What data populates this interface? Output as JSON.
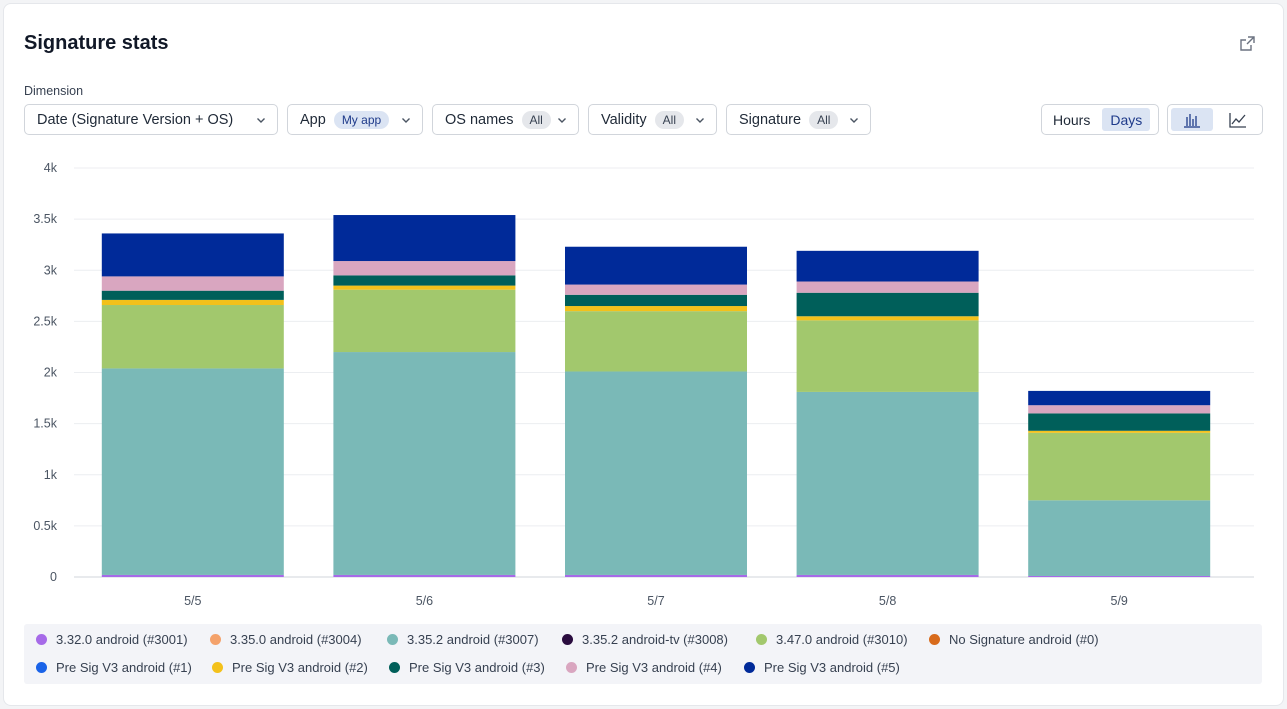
{
  "panel": {
    "title": "Signature stats",
    "dimension_label": "Dimension"
  },
  "filters": {
    "dimension": {
      "value": "Date (Signature Version + OS)"
    },
    "app": {
      "label": "App",
      "value": "My app"
    },
    "os_names": {
      "label": "OS names",
      "value": "All"
    },
    "validity": {
      "label": "Validity",
      "value": "All"
    },
    "signature": {
      "label": "Signature",
      "value": "All"
    }
  },
  "granularity": {
    "options": [
      "Hours",
      "Days"
    ],
    "selected": "Days"
  },
  "chart_view": {
    "selected": "bar-chart"
  },
  "icons": [
    "export-icon",
    "chevron-down-icon",
    "bar-chart-icon",
    "line-chart-icon"
  ],
  "chart_data": {
    "type": "bar",
    "stacked": true,
    "categories": [
      "5/5",
      "5/6",
      "5/7",
      "5/8",
      "5/9"
    ],
    "y_ticks": [
      "0",
      "0.5k",
      "1k",
      "1.5k",
      "2k",
      "2.5k",
      "3k",
      "3.5k",
      "4k"
    ],
    "ylim": [
      0,
      4000
    ],
    "grid": true,
    "legend_position": "bottom",
    "series": [
      {
        "name": "3.32.0 android (#3001)",
        "color": "#a66ae8",
        "values": [
          20,
          20,
          20,
          20,
          10
        ]
      },
      {
        "name": "3.35.0 android (#3004)",
        "color": "#f4a26b",
        "values": [
          0,
          0,
          0,
          0,
          0
        ]
      },
      {
        "name": "3.35.2 android (#3007)",
        "color": "#7ab9b7",
        "values": [
          2020,
          2180,
          1990,
          1790,
          740
        ]
      },
      {
        "name": "3.35.2 android-tv (#3008)",
        "color": "#2a0c3f",
        "values": [
          0,
          0,
          0,
          0,
          0
        ]
      },
      {
        "name": "3.47.0 android (#3010)",
        "color": "#a2c86d",
        "values": [
          620,
          610,
          590,
          700,
          660
        ]
      },
      {
        "name": "No Signature android (#0)",
        "color": "#d86b1c",
        "values": [
          0,
          0,
          0,
          0,
          0
        ]
      },
      {
        "name": "Pre Sig V3 android (#1)",
        "color": "#1a63e8",
        "values": [
          0,
          0,
          0,
          0,
          0
        ]
      },
      {
        "name": "Pre Sig V3 android (#2)",
        "color": "#f3c11b",
        "values": [
          50,
          40,
          50,
          40,
          20
        ]
      },
      {
        "name": "Pre Sig V3 android (#3)",
        "color": "#005f5a",
        "values": [
          90,
          100,
          110,
          230,
          170
        ]
      },
      {
        "name": "Pre Sig V3 android (#4)",
        "color": "#d9a6c0",
        "values": [
          140,
          140,
          100,
          110,
          80
        ]
      },
      {
        "name": "Pre Sig V3 android (#5)",
        "color": "#002a99",
        "values": [
          420,
          450,
          370,
          300,
          140
        ]
      }
    ]
  }
}
